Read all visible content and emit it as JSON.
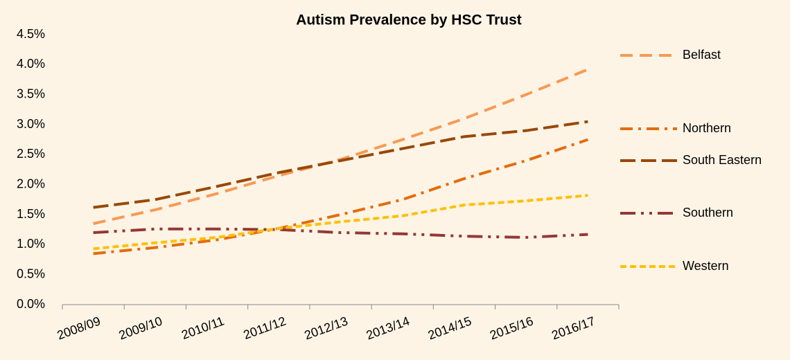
{
  "chart_data": {
    "type": "line",
    "title": "Autism Prevalence by HSC Trust",
    "categories": [
      "2008/09",
      "2009/10",
      "2010/11",
      "2011/12",
      "2012/13",
      "2013/14",
      "2014/15",
      "2015/16",
      "2016/17"
    ],
    "series": [
      {
        "name": "Belfast",
        "color": "#f79a53",
        "dash": "18 10",
        "values": [
          1.35,
          1.58,
          1.85,
          2.15,
          2.42,
          2.75,
          3.1,
          3.5,
          3.92
        ]
      },
      {
        "name": "Northern",
        "color": "#e46c0a",
        "dash": "18 8 4 8",
        "values": [
          0.85,
          0.95,
          1.08,
          1.27,
          1.5,
          1.75,
          2.1,
          2.4,
          2.75
        ]
      },
      {
        "name": "South Eastern",
        "color": "#984807",
        "dash": "22 8",
        "values": [
          1.62,
          1.75,
          1.97,
          2.2,
          2.4,
          2.6,
          2.8,
          2.9,
          3.05
        ]
      },
      {
        "name": "Southern",
        "color": "#953735",
        "dash": "22 8 4 8 4 8",
        "values": [
          1.2,
          1.26,
          1.26,
          1.25,
          1.2,
          1.18,
          1.14,
          1.12,
          1.17
        ]
      },
      {
        "name": "Western",
        "color": "#ffc000",
        "dash": "9 5",
        "values": [
          0.93,
          1.03,
          1.12,
          1.27,
          1.38,
          1.48,
          1.66,
          1.73,
          1.82
        ]
      }
    ],
    "ylim": [
      0,
      4.5
    ],
    "yticks": [
      {
        "value": 0,
        "label": "0.0%"
      },
      {
        "value": 0.5,
        "label": "0.5%"
      },
      {
        "value": 1,
        "label": "1.0%"
      },
      {
        "value": 1.5,
        "label": "1.5%"
      },
      {
        "value": 2,
        "label": "2.0%"
      },
      {
        "value": 2.5,
        "label": "2.5%"
      },
      {
        "value": 3,
        "label": "3.0%"
      },
      {
        "value": 3.5,
        "label": "3.5%"
      },
      {
        "value": 4,
        "label": "4.0%"
      },
      {
        "value": 4.5,
        "label": "4.5%"
      }
    ],
    "grid": false,
    "legend": "right"
  }
}
